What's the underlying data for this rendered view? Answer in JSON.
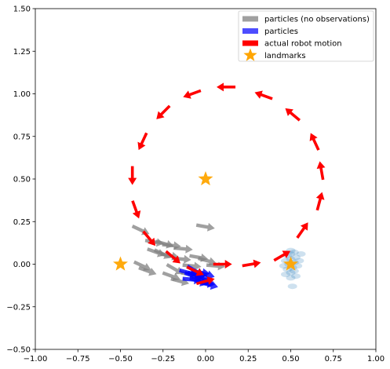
{
  "chart_data": {
    "type": "scatter",
    "xlim": [
      -1.0,
      1.0
    ],
    "ylim": [
      -0.5,
      1.5
    ],
    "x_ticks": [
      "−1.00",
      "−0.75",
      "−0.50",
      "−0.25",
      "0.00",
      "0.25",
      "0.50",
      "0.75",
      "1.00"
    ],
    "y_ticks": [
      "−0.50",
      "−0.25",
      "0.00",
      "0.25",
      "0.50",
      "0.75",
      "1.00",
      "1.25",
      "1.50"
    ],
    "grid": false,
    "legend_position": "top-right",
    "legend": [
      {
        "label": "particles (no observations)",
        "color": "#a0a0a0",
        "marker": "rect"
      },
      {
        "label": "particles",
        "color": "#4d4dff",
        "marker": "rect"
      },
      {
        "label": "actual robot motion",
        "color": "#ff0000",
        "marker": "rect"
      },
      {
        "label": "landmarks",
        "color": "#ffa500",
        "marker": "star"
      }
    ],
    "landmarks": [
      {
        "x": 0.0,
        "y": 0.5
      },
      {
        "x": -0.5,
        "y": 0.0
      },
      {
        "x": 0.5,
        "y": 0.0
      }
    ],
    "robot_motion": [
      {
        "x": 0.0,
        "y": -0.1,
        "angle": 15
      },
      {
        "x": 0.1,
        "y": 0.0,
        "angle": 0
      },
      {
        "x": 0.27,
        "y": 0.0,
        "angle": 10
      },
      {
        "x": 0.45,
        "y": 0.05,
        "angle": 30
      },
      {
        "x": 0.57,
        "y": 0.2,
        "angle": 55
      },
      {
        "x": 0.67,
        "y": 0.37,
        "angle": 75
      },
      {
        "x": 0.68,
        "y": 0.55,
        "angle": 100
      },
      {
        "x": 0.64,
        "y": 0.72,
        "angle": 115
      },
      {
        "x": 0.51,
        "y": 0.88,
        "angle": 140
      },
      {
        "x": 0.34,
        "y": 0.99,
        "angle": 160
      },
      {
        "x": 0.12,
        "y": 1.04,
        "angle": 180
      },
      {
        "x": -0.08,
        "y": 1.0,
        "angle": 200
      },
      {
        "x": -0.25,
        "y": 0.89,
        "angle": 225
      },
      {
        "x": -0.37,
        "y": 0.72,
        "angle": 245
      },
      {
        "x": -0.43,
        "y": 0.52,
        "angle": 270
      },
      {
        "x": -0.41,
        "y": 0.32,
        "angle": 290
      },
      {
        "x": -0.33,
        "y": 0.15,
        "angle": 310
      },
      {
        "x": -0.19,
        "y": 0.04,
        "angle": 320
      },
      {
        "x": -0.06,
        "y": -0.04,
        "angle": 335
      }
    ],
    "particles_no_obs": [
      {
        "x": -0.38,
        "y": 0.2,
        "angle": -25
      },
      {
        "x": -0.3,
        "y": 0.13,
        "angle": -10
      },
      {
        "x": -0.24,
        "y": 0.12,
        "angle": -15
      },
      {
        "x": -0.2,
        "y": 0.11,
        "angle": -5
      },
      {
        "x": -0.29,
        "y": 0.07,
        "angle": -20
      },
      {
        "x": -0.25,
        "y": 0.06,
        "angle": -25
      },
      {
        "x": -0.21,
        "y": 0.05,
        "angle": -10
      },
      {
        "x": -0.14,
        "y": 0.03,
        "angle": -5
      },
      {
        "x": -0.04,
        "y": 0.04,
        "angle": -10
      },
      {
        "x": 0.01,
        "y": 0.02,
        "angle": -15
      },
      {
        "x": 0.06,
        "y": -0.01,
        "angle": -5
      },
      {
        "x": -0.37,
        "y": -0.01,
        "angle": -25
      },
      {
        "x": -0.34,
        "y": -0.04,
        "angle": -20
      },
      {
        "x": -0.18,
        "y": -0.03,
        "angle": -30
      },
      {
        "x": -0.2,
        "y": -0.07,
        "angle": -20
      },
      {
        "x": -0.15,
        "y": -0.1,
        "angle": -15
      },
      {
        "x": -0.08,
        "y": -0.01,
        "angle": -5
      },
      {
        "x": -0.09,
        "y": -0.06,
        "angle": -10
      },
      {
        "x": 0.0,
        "y": 0.22,
        "angle": -10
      },
      {
        "x": -0.13,
        "y": 0.09,
        "angle": -5
      }
    ],
    "particles": [
      {
        "x": -0.1,
        "y": -0.05,
        "angle": -15
      },
      {
        "x": -0.07,
        "y": -0.07,
        "angle": -20
      },
      {
        "x": -0.05,
        "y": -0.06,
        "angle": -10
      },
      {
        "x": -0.02,
        "y": -0.08,
        "angle": -25
      },
      {
        "x": 0.0,
        "y": -0.06,
        "angle": -15
      },
      {
        "x": -0.08,
        "y": -0.09,
        "angle": -5
      },
      {
        "x": -0.04,
        "y": -0.1,
        "angle": -20
      },
      {
        "x": 0.0,
        "y": -0.11,
        "angle": -10
      },
      {
        "x": 0.02,
        "y": -0.12,
        "angle": -15
      },
      {
        "x": -0.06,
        "y": -0.04,
        "angle": -30
      },
      {
        "x": -0.03,
        "y": -0.05,
        "angle": -5
      },
      {
        "x": -0.01,
        "y": -0.09,
        "angle": -25
      }
    ],
    "particle_cloud": [
      {
        "x": 0.5,
        "y": 0.08
      },
      {
        "x": 0.52,
        "y": 0.07
      },
      {
        "x": 0.48,
        "y": 0.05
      },
      {
        "x": 0.53,
        "y": 0.04
      },
      {
        "x": 0.5,
        "y": 0.03
      },
      {
        "x": 0.47,
        "y": 0.02
      },
      {
        "x": 0.55,
        "y": 0.02
      },
      {
        "x": 0.52,
        "y": 0.01
      },
      {
        "x": 0.49,
        "y": 0.0
      },
      {
        "x": 0.46,
        "y": -0.01
      },
      {
        "x": 0.54,
        "y": -0.01
      },
      {
        "x": 0.51,
        "y": -0.02
      },
      {
        "x": 0.48,
        "y": -0.03
      },
      {
        "x": 0.52,
        "y": -0.04
      },
      {
        "x": 0.5,
        "y": -0.05
      },
      {
        "x": 0.47,
        "y": -0.06
      },
      {
        "x": 0.53,
        "y": -0.07
      },
      {
        "x": 0.5,
        "y": -0.08
      },
      {
        "x": 0.51,
        "y": -0.13
      },
      {
        "x": 0.5,
        "y": 0.06
      },
      {
        "x": 0.56,
        "y": 0.06
      }
    ]
  }
}
